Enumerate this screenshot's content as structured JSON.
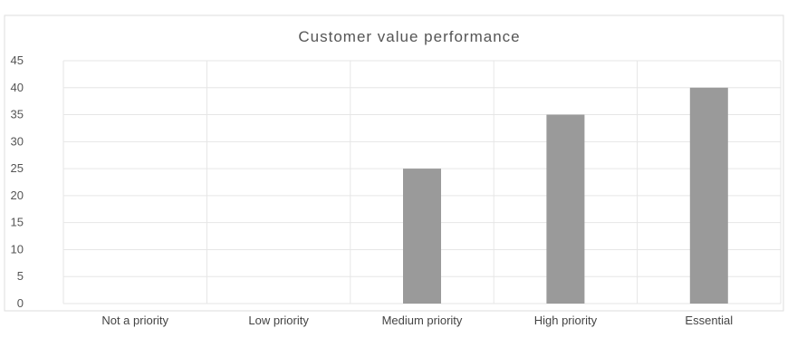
{
  "chart_data": {
    "type": "bar",
    "title": "Customer value performance",
    "xlabel": "",
    "ylabel": "",
    "categories": [
      "Not a priority",
      "Low priority",
      "Medium priority",
      "High priority",
      "Essential"
    ],
    "values": [
      0,
      0,
      25,
      35,
      40
    ],
    "ylim": [
      0,
      45
    ],
    "yticks": [
      "0",
      "5",
      "10",
      "15",
      "20",
      "25",
      "30",
      "35",
      "40",
      "45"
    ],
    "grid": true,
    "legend": "none",
    "colors": {
      "bar": "#9a9a9a",
      "grid": "#e6e6e6",
      "frame": "#d8d8d8"
    }
  }
}
